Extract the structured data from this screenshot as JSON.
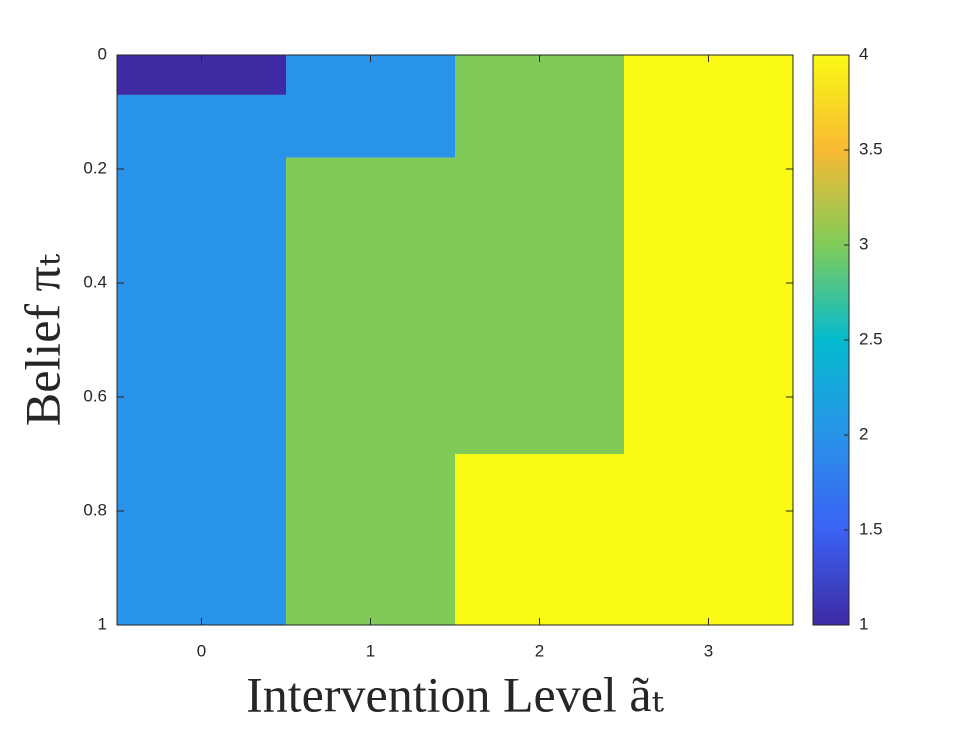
{
  "chart_data": {
    "type": "heatmap",
    "xlabel": "Intervention Level ãₜ",
    "ylabel": "Belief πₜ",
    "xlim": [
      -0.5,
      3.5
    ],
    "xticks": [
      0,
      1,
      2,
      3
    ],
    "ylim": [
      0,
      1
    ],
    "yticks": [
      0,
      0.2,
      0.4,
      0.6,
      0.8,
      1
    ],
    "y_reversed": true,
    "cells": [
      {
        "x": 0,
        "y0": 0,
        "y1": 0.07,
        "value": 1
      },
      {
        "x": 0,
        "y0": 0.07,
        "y1": 1,
        "value": 2
      },
      {
        "x": 1,
        "y0": 0,
        "y1": 0.18,
        "value": 2
      },
      {
        "x": 1,
        "y0": 0.18,
        "y1": 1,
        "value": 3
      },
      {
        "x": 2,
        "y0": 0,
        "y1": 0.7,
        "value": 3
      },
      {
        "x": 2,
        "y0": 0.7,
        "y1": 1,
        "value": 4
      },
      {
        "x": 3,
        "y0": 0,
        "y1": 1,
        "value": 4
      }
    ],
    "clim": [
      1,
      4
    ],
    "cticks": [
      1,
      1.5,
      2,
      2.5,
      3,
      3.5,
      4
    ],
    "colormap": [
      "#3e2aa3",
      "#3a62f4",
      "#2893e8",
      "#05bbcf",
      "#80cb58",
      "#f8ba34",
      "#f9f914"
    ]
  }
}
